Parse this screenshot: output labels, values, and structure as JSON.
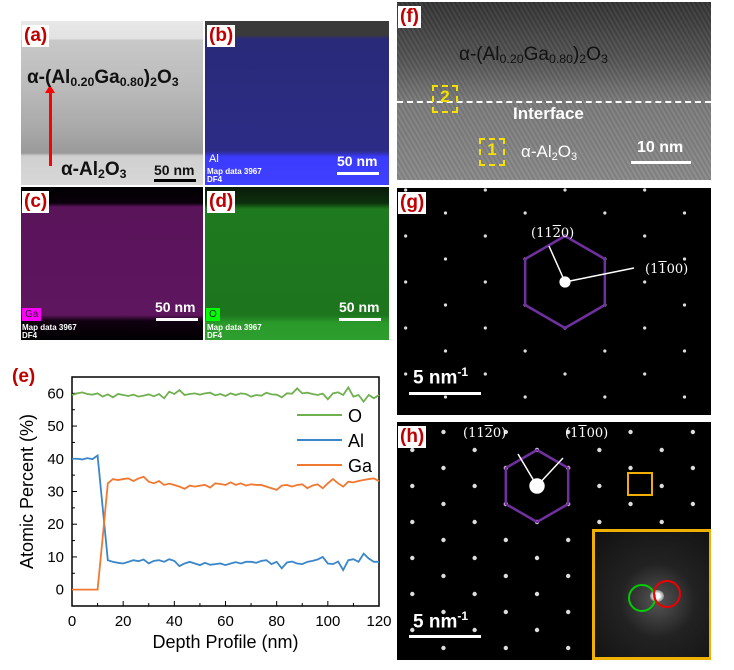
{
  "panels": {
    "a": {
      "label": "(a)",
      "film": [
        "α-(Al",
        "0.20",
        "Ga",
        "0.80",
        ")",
        "2",
        "O",
        "3"
      ],
      "substrate": [
        "α-Al",
        "2",
        "O",
        "3"
      ],
      "scale": "50 nm"
    },
    "b": {
      "label": "(b)",
      "element": "Al",
      "scale": "50 nm",
      "map_note": [
        "Map data 3967",
        "DF4"
      ],
      "color": "#3a3aff"
    },
    "c": {
      "label": "(c)",
      "element": "Ga",
      "scale": "50 nm",
      "map_note": [
        "Map data 3967",
        "DF4"
      ],
      "color": "#ff00ff"
    },
    "d": {
      "label": "(d)",
      "element": "O",
      "scale": "50 nm",
      "map_note": [
        "Map data 3967",
        "DF4"
      ],
      "color": "#00ff00"
    },
    "e": {
      "label": "(e)"
    },
    "f": {
      "label": "(f)",
      "film": [
        "α-(Al",
        "0.20",
        "Ga",
        "0.80",
        ")",
        "2",
        "O",
        "3"
      ],
      "interface": "Interface",
      "substrate": [
        "α-Al",
        "2",
        "O",
        "3"
      ],
      "scale": "10 nm",
      "box1": "1",
      "box2": "2"
    },
    "g": {
      "label": "(g)",
      "spot1": [
        "(11",
        "2",
        "0)"
      ],
      "spot2": [
        "(1",
        "1",
        "00)"
      ],
      "scale": "5 nm",
      "scale_exp": "-1",
      "hex_color": "#7030a0"
    },
    "h": {
      "label": "(h)",
      "spot1": [
        "(11",
        "2",
        "0)"
      ],
      "spot2": [
        "(1",
        "1",
        "00)"
      ],
      "scale": "5 nm",
      "scale_exp": "-1",
      "hex_color": "#7030a0",
      "inset_color": "#f0b000"
    }
  },
  "chart_data": {
    "type": "line",
    "xlabel": "Depth Profile (nm)",
    "ylabel": "Atomic Percent (%)",
    "xlim": [
      0,
      120
    ],
    "ylim": [
      -5,
      65
    ],
    "xticks": [
      0,
      20,
      40,
      60,
      80,
      100,
      120
    ],
    "yticks": [
      0,
      10,
      20,
      30,
      40,
      50,
      60
    ],
    "grid": false,
    "legend": "right",
    "x": [
      0,
      2,
      4,
      6,
      8,
      10,
      12,
      14,
      16,
      18,
      20,
      22,
      24,
      26,
      28,
      30,
      32,
      34,
      36,
      38,
      40,
      42,
      44,
      46,
      48,
      50,
      52,
      54,
      56,
      58,
      60,
      62,
      64,
      66,
      68,
      70,
      72,
      74,
      76,
      78,
      80,
      82,
      84,
      86,
      88,
      90,
      92,
      94,
      96,
      98,
      100,
      102,
      104,
      106,
      108,
      110,
      112,
      114,
      116,
      118,
      120
    ],
    "series": [
      {
        "name": "O",
        "color": "#70b050",
        "values": [
          59.5,
          60,
          60.3,
          59.8,
          59.6,
          60,
          59,
          59.7,
          58.8,
          59.8,
          59.5,
          59.2,
          59.6,
          59,
          59.3,
          59.7,
          59.1,
          59.8,
          58.5,
          60.5,
          59.8,
          61,
          59.5,
          59.8,
          60,
          59.6,
          60,
          60.2,
          59.4,
          59.8,
          59.2,
          60,
          59.5,
          60,
          59.8,
          59,
          59.5,
          59.3,
          60.2,
          59.7,
          59.6,
          58.8,
          60,
          59.9,
          61.5,
          60,
          60.2,
          59.8,
          59.5,
          59.9,
          58.2,
          60,
          60.3,
          59.5,
          61.8,
          59,
          59.5,
          57.5,
          59.5,
          58.5,
          59.5
        ]
      },
      {
        "name": "Al",
        "color": "#3a86c8",
        "values": [
          40,
          40,
          39.8,
          40.2,
          39.9,
          41,
          25,
          9,
          8.5,
          8.2,
          8,
          8.5,
          9,
          8.7,
          9.2,
          8,
          8.8,
          9,
          8.5,
          9.3,
          8.8,
          7.2,
          8,
          8.5,
          8,
          7.5,
          8.2,
          7.6,
          7.8,
          8,
          7.5,
          8,
          8.4,
          8,
          8.5,
          8.5,
          8.2,
          8.8,
          9,
          7.8,
          8.5,
          6.5,
          8.3,
          8.6,
          8,
          7.8,
          8.5,
          8.8,
          9.2,
          10,
          8,
          7.8,
          8.6,
          6,
          9,
          9.3,
          8.5,
          11,
          9.5,
          8.5,
          8.5
        ]
      },
      {
        "name": "Ga",
        "color": "#f07830",
        "values": [
          0,
          0,
          0,
          0,
          0,
          0,
          16,
          32.5,
          33.8,
          33.5,
          33.8,
          34,
          33.2,
          34,
          34.5,
          33,
          32.5,
          33.2,
          32,
          32.4,
          32,
          31.5,
          30.8,
          31.8,
          31.5,
          31.8,
          32,
          31.2,
          32.5,
          32.3,
          32,
          32.8,
          32,
          32.5,
          31.8,
          32.2,
          32,
          32,
          31.5,
          31,
          30.5,
          31.8,
          32,
          31.5,
          32,
          32.2,
          31,
          31.8,
          32.2,
          31,
          32.5,
          33.8,
          32.5,
          31.5,
          33,
          32.8,
          33.2,
          33.5,
          33.8,
          34,
          33.2
        ]
      }
    ]
  }
}
